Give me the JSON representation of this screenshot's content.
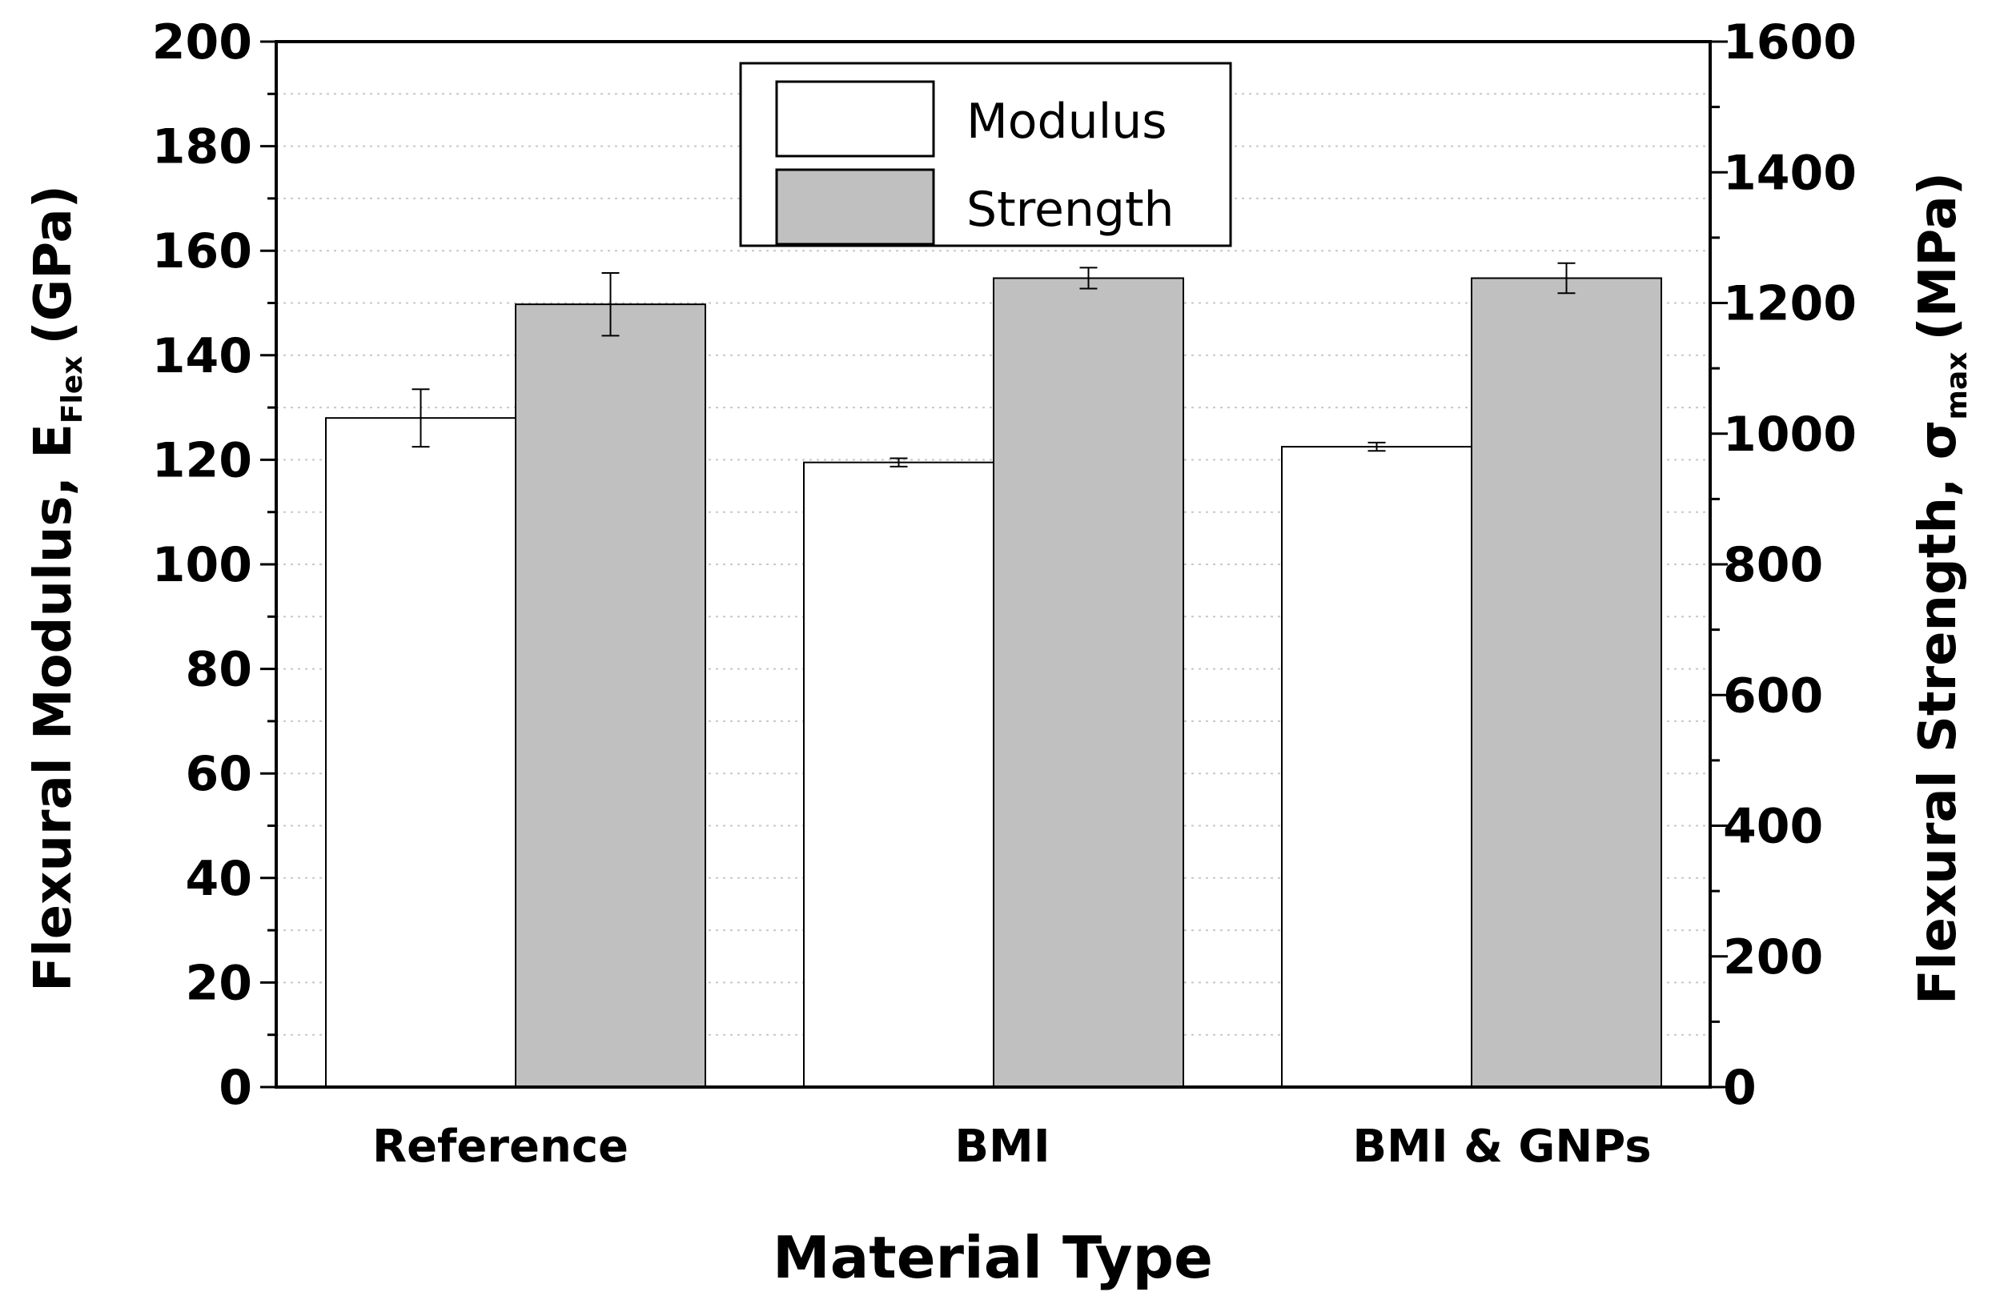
{
  "chart_data": {
    "type": "bar",
    "categories": [
      "Reference",
      "BMI",
      "BMI & GNPs"
    ],
    "xlabel": "Material Type",
    "ylabel": {
      "main": "Flexural Modulus, E",
      "sub": "Flex",
      "unit": "(GPa)"
    },
    "y2label": {
      "main": "Flexural Strength, σ",
      "sub": "max",
      "unit": "(MPa)"
    },
    "ylim": [
      0,
      200
    ],
    "y2lim": [
      0,
      1600
    ],
    "yticks": [
      "0",
      "20",
      "40",
      "60",
      "80",
      "100",
      "120",
      "140",
      "160",
      "180",
      "200"
    ],
    "y2ticks": [
      "0",
      "200",
      "400",
      "600",
      "800",
      "1000",
      "1200",
      "1400",
      "1600"
    ],
    "grid": "horizontal dotted",
    "legend_position": "top-center",
    "series": [
      {
        "name": "Modulus",
        "axis": "left",
        "color": "#ffffff",
        "values": [
          128,
          119.5,
          122.5
        ],
        "errors": [
          5.5,
          0.8,
          0.8
        ]
      },
      {
        "name": "Strength",
        "axis": "right",
        "color": "#c0c0c0",
        "values": [
          1198,
          1238,
          1238
        ],
        "errors": [
          48,
          16,
          23
        ]
      }
    ]
  }
}
